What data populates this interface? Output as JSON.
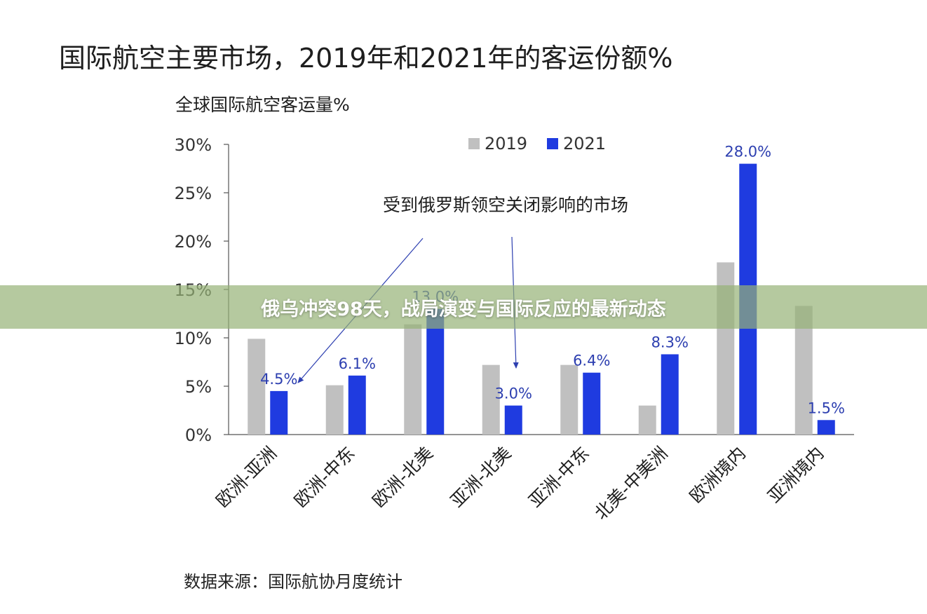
{
  "title": "国际航空主要市场，2019年和2021年的客运份额%",
  "subtitle": "全球国际航空客运量%",
  "source": "数据来源：国际航协月度统计",
  "banner": "俄乌冲突98天，战局演变与国际反应的最新动态",
  "colors": {
    "s2019": "#c0c0c0",
    "s2021": "#1f3be0",
    "label2021": "#2d3fb0",
    "banner": "#96b276"
  },
  "chart_data": {
    "type": "bar",
    "categories": [
      "欧洲-亚洲",
      "欧洲-中东",
      "欧洲-北美",
      "亚洲-北美",
      "亚洲-中东",
      "北美-中美洲",
      "欧洲境内",
      "亚洲境内"
    ],
    "series": [
      {
        "name": "2019",
        "values": [
          9.9,
          5.1,
          11.4,
          7.2,
          7.2,
          3.0,
          17.8,
          13.3
        ]
      },
      {
        "name": "2021",
        "values": [
          4.5,
          6.1,
          13.0,
          3.0,
          6.4,
          8.3,
          28.0,
          1.5
        ]
      }
    ],
    "data_labels_2021": [
      "4.5%",
      "6.1%",
      "13.0%",
      "3.0%",
      "6.4%",
      "8.3%",
      "28.0%",
      "1.5%"
    ],
    "yticks": [
      "0%",
      "5%",
      "10%",
      "15%",
      "20%",
      "25%",
      "30%"
    ],
    "ylim": [
      0,
      30
    ],
    "legend": [
      "2019",
      "2021"
    ],
    "legend_position": "top-center",
    "annotation": "受到俄罗斯领空关闭影响的市场",
    "grid": false
  }
}
